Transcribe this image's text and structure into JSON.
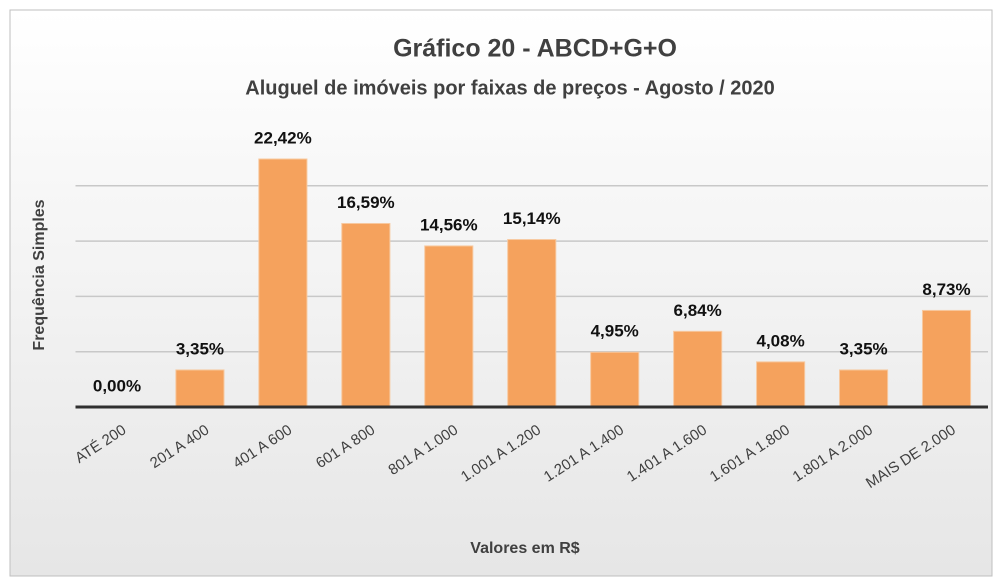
{
  "chart_data": {
    "type": "bar",
    "title": "Gráfico 20 - ABCD+G+O",
    "subtitle": "Aluguel de imóveis por faixas de preços - Agosto / 2020",
    "xlabel": "Valores em R$",
    "ylabel": "Frequência Simples",
    "categories": [
      "ATÉ 200",
      "201 A 400",
      "401 A 600",
      "601 A 800",
      "801 A 1.000",
      "1.001 A 1.200",
      "1.201 A 1.400",
      "1.401 A 1.600",
      "1.601 A 1.800",
      "1.801 A 2.000",
      "MAIS DE 2.000"
    ],
    "values": [
      0.0,
      3.35,
      22.42,
      16.59,
      14.56,
      15.14,
      4.95,
      6.84,
      4.08,
      3.35,
      8.73
    ],
    "value_labels": [
      "0,00%",
      "3,35%",
      "22,42%",
      "16,59%",
      "14,56%",
      "15,14%",
      "4,95%",
      "6,84%",
      "4,08%",
      "3,35%",
      "8,73%"
    ],
    "color": "#f5a25d",
    "ylim": [
      0,
      25
    ],
    "yticks": [
      0,
      5,
      10,
      15,
      20
    ],
    "grid": true
  }
}
